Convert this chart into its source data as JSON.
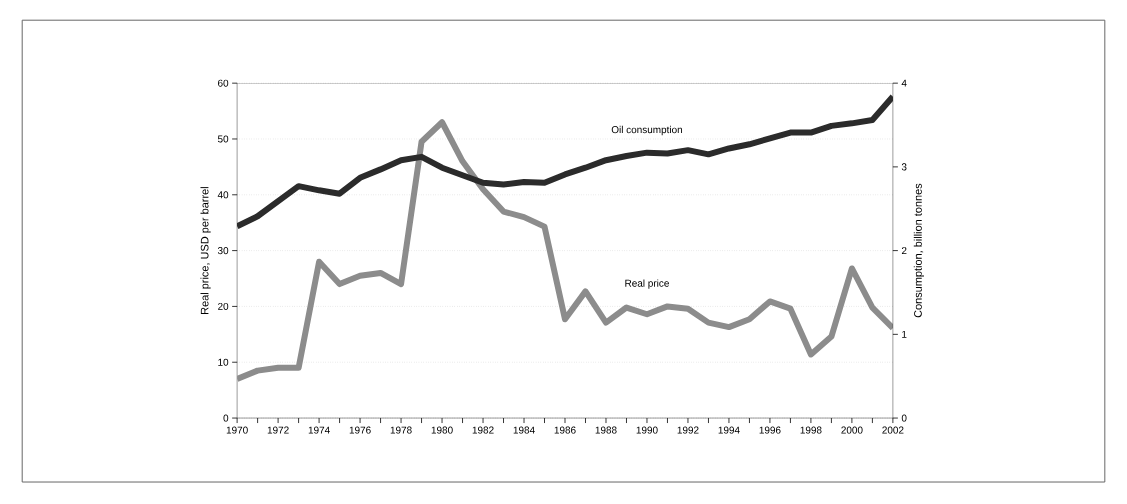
{
  "chart_data": {
    "type": "line",
    "x": [
      1970,
      1971,
      1972,
      1973,
      1974,
      1975,
      1976,
      1977,
      1978,
      1979,
      1980,
      1981,
      1982,
      1983,
      1984,
      1985,
      1986,
      1987,
      1988,
      1989,
      1990,
      1991,
      1992,
      1993,
      1994,
      1995,
      1996,
      1997,
      1998,
      1999,
      2000,
      2001,
      2002
    ],
    "series": [
      {
        "name": "Oil consumption",
        "color": "#2b2b2b",
        "axis": "y2",
        "values": [
          2.29,
          2.41,
          2.59,
          2.77,
          2.72,
          2.68,
          2.87,
          2.97,
          3.08,
          3.12,
          2.99,
          2.9,
          2.81,
          2.79,
          2.82,
          2.81,
          2.91,
          2.99,
          3.08,
          3.13,
          3.17,
          3.16,
          3.2,
          3.15,
          3.22,
          3.27,
          3.34,
          3.41,
          3.41,
          3.49,
          3.52,
          3.56,
          3.84
        ]
      },
      {
        "name": "Real price",
        "color": "#8c8c8c",
        "values": [
          7,
          8.5,
          9,
          9,
          28,
          24,
          25.5,
          26,
          24,
          49.5,
          53,
          46,
          41,
          37,
          36,
          34.3,
          17.7,
          22.7,
          17.1,
          19.8,
          18.6,
          20,
          19.6,
          17.1,
          16.3,
          17.7,
          20.9,
          19.6,
          11.4,
          14.6,
          26.8,
          19.8,
          16.1
        ]
      }
    ],
    "ylabel": "Real price, USD per barrel",
    "y2label": "Consumption, billion tonnes",
    "xlim": [
      1970,
      2002
    ],
    "xticks": [
      1970,
      {
        "value": 1971,
        "label": null
      },
      1972,
      {
        "value": 1973,
        "label": null
      },
      1974,
      {
        "value": 1975,
        "label": null
      },
      1976,
      {
        "value": 1977,
        "label": null
      },
      1978,
      {
        "value": 1979,
        "label": null
      },
      1980,
      {
        "value": 1981,
        "label": null
      },
      1982,
      {
        "value": 1983,
        "label": null
      },
      1984,
      {
        "value": 1985,
        "label": null
      },
      1986,
      {
        "value": 1987,
        "label": null
      },
      1988,
      {
        "value": 1989,
        "label": null
      },
      1990,
      {
        "value": 1991,
        "label": null
      },
      1992,
      {
        "value": 1993,
        "label": null
      },
      1994,
      {
        "value": 1995,
        "label": null
      },
      1996,
      {
        "value": 1997,
        "label": null
      },
      1998,
      {
        "value": 1999,
        "label": null
      },
      2000,
      {
        "value": 2001,
        "label": null
      },
      2002
    ],
    "ylim": [
      0,
      60
    ],
    "yticks": [
      0,
      10,
      20,
      30,
      40,
      50,
      60
    ],
    "y2lim": [
      0,
      4
    ],
    "y2ticks": [
      0,
      1,
      2,
      3,
      4
    ],
    "grid": "y",
    "marker": "none",
    "line_style": "solid"
  }
}
